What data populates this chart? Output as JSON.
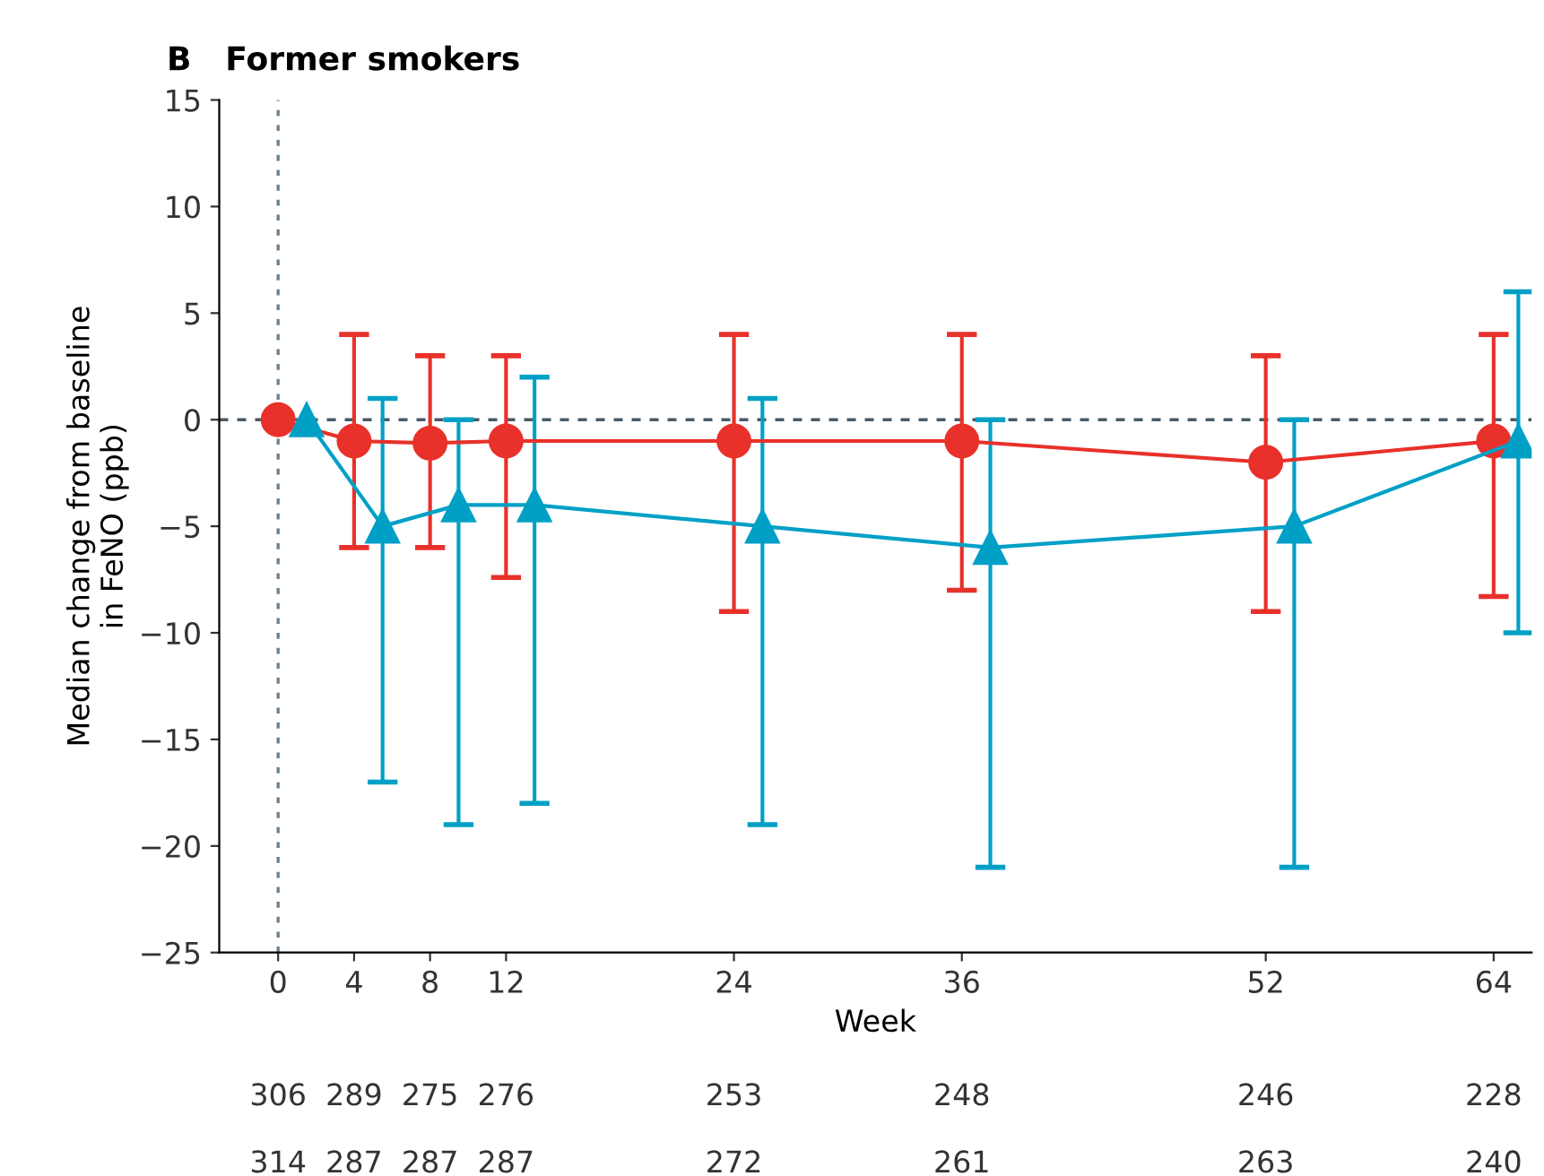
{
  "chart_data": {
    "type": "line",
    "title": "B   Former smokers",
    "xlabel": "Week",
    "ylabel": "Median change from baseline\nin FeNO (ppb)",
    "xlim": [
      -3.1,
      66
    ],
    "xticks": [
      0,
      4,
      8,
      12,
      24,
      36,
      52,
      64
    ],
    "ylim": [
      -25,
      15
    ],
    "yticks": [
      -25,
      -20,
      -15,
      -10,
      -5,
      0,
      5,
      10,
      15
    ],
    "series": [
      {
        "color": "#e8312a",
        "marker": "circle",
        "x": [
          0,
          4,
          8,
          12,
          24,
          36,
          52,
          64
        ],
        "values": [
          0,
          -1,
          -1.1,
          -1,
          -1,
          -1,
          -2,
          -1
        ],
        "errors": [
          null,
          [
            -6,
            4
          ],
          [
            -6,
            3
          ],
          [
            -7.4,
            3
          ],
          [
            -9,
            4
          ],
          [
            -8,
            4
          ],
          [
            -9,
            3
          ],
          [
            -8.3,
            4
          ]
        ]
      },
      {
        "color": "#00a0c6",
        "marker": "triangle",
        "x": [
          1.5,
          5.5,
          9.5,
          13.5,
          25.5,
          37.5,
          53.5,
          65.3
        ],
        "values": [
          0,
          -5,
          -4,
          -4,
          -5,
          -6,
          -5,
          -1
        ],
        "errors": [
          null,
          [
            -17,
            1
          ],
          [
            -19,
            0
          ],
          [
            -18,
            2
          ],
          [
            -19,
            1
          ],
          [
            -21,
            0
          ],
          [
            -21,
            0
          ],
          [
            -10,
            6
          ]
        ]
      }
    ],
    "ref_lines": [
      {
        "axis": "y",
        "value": 0,
        "color": "#4a5a66",
        "line_style": "dashed"
      },
      {
        "axis": "x",
        "value": 0,
        "color": "#6a8090",
        "line_style": "dotted"
      }
    ],
    "annotations": [
      "306",
      "289",
      "275",
      "276",
      "253",
      "248",
      "246",
      "228",
      "314",
      "287",
      "287",
      "287",
      "272",
      "261",
      "263",
      "240"
    ],
    "grid": false,
    "legend": false
  }
}
